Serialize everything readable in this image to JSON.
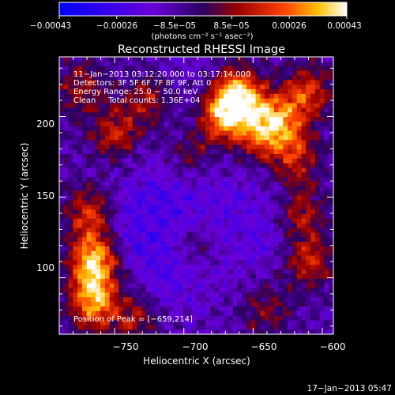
{
  "colorbar": {
    "tick_labels": [
      "−0.00043",
      "−0.00026",
      "−8.5e−05",
      "8.5e−05",
      "0.00026",
      "0.00043"
    ],
    "units": "(photons cm⁻² s⁻¹ asec⁻²)"
  },
  "plot": {
    "title": "Reconstructed RHESSI Image",
    "info_lines": [
      "11−Jan−2013 03:12:20.000 to 03:17:14.000",
      "Detectors: 3F 5F 6F 7F 8F 9F, Att 0",
      "Energy Range: 25.0 − 50.0 keV",
      "Clean     Total counts: 1.36E+04"
    ],
    "peak_label": "Position of Peak = [−659,214]"
  },
  "axes": {
    "xlabel": "Heliocentric X (arcsec)",
    "ylabel": "Heliocentric Y (arcsec)",
    "x_ticks": [
      "−750",
      "−700",
      "−650",
      "−600"
    ],
    "y_ticks": [
      "100",
      "150",
      "200"
    ]
  },
  "footer": {
    "date": "17−Jan−2013 05:47"
  },
  "chart_data": {
    "type": "heatmap",
    "title": "Reconstructed RHESSI Image",
    "xlabel": "Heliocentric X (arcsec)",
    "ylabel": "Heliocentric Y (arcsec)",
    "xlim": [
      -790,
      -592
    ],
    "ylim": [
      65,
      237
    ],
    "x_ticks": [
      -750,
      -700,
      -650,
      -600
    ],
    "y_ticks": [
      100,
      150,
      200
    ],
    "colorbar_range": [
      -0.00043,
      0.00043
    ],
    "colorbar_ticks": [
      -0.00043,
      -0.00026,
      -8.5e-05,
      8.5e-05,
      0.00026,
      0.00043
    ],
    "colormap": "blue-purple-red-yellow-white",
    "peak": {
      "x": -659,
      "y": 214
    },
    "hot_regions": [
      {
        "x": -660,
        "y": 212,
        "level": 1.0
      },
      {
        "x": -672,
        "y": 200,
        "level": 0.75
      },
      {
        "x": -645,
        "y": 190,
        "level": 0.6
      },
      {
        "x": -630,
        "y": 198,
        "level": 0.65
      },
      {
        "x": -610,
        "y": 215,
        "level": 0.55
      },
      {
        "x": -620,
        "y": 175,
        "level": 0.5
      },
      {
        "x": -615,
        "y": 140,
        "level": 0.45
      },
      {
        "x": -610,
        "y": 110,
        "level": 0.5
      },
      {
        "x": -765,
        "y": 110,
        "level": 0.95
      },
      {
        "x": -765,
        "y": 85,
        "level": 0.85
      },
      {
        "x": -768,
        "y": 140,
        "level": 0.55
      },
      {
        "x": -750,
        "y": 190,
        "level": 0.5
      },
      {
        "x": -725,
        "y": 210,
        "level": 0.45
      },
      {
        "x": -695,
        "y": 175,
        "level": 0.35
      },
      {
        "x": -690,
        "y": 120,
        "level": 0.35
      },
      {
        "x": -735,
        "y": 75,
        "level": 0.4
      },
      {
        "x": -640,
        "y": 80,
        "level": 0.35
      },
      {
        "x": -775,
        "y": 218,
        "level": 0.4
      }
    ],
    "cold_regions": [
      {
        "x": -725,
        "y": 135,
        "level": 1.0
      },
      {
        "x": -705,
        "y": 108,
        "level": 0.8
      },
      {
        "x": -650,
        "y": 130,
        "level": 0.7
      },
      {
        "x": -690,
        "y": 160,
        "level": 0.5
      },
      {
        "x": -705,
        "y": 225,
        "level": 0.35
      }
    ]
  }
}
